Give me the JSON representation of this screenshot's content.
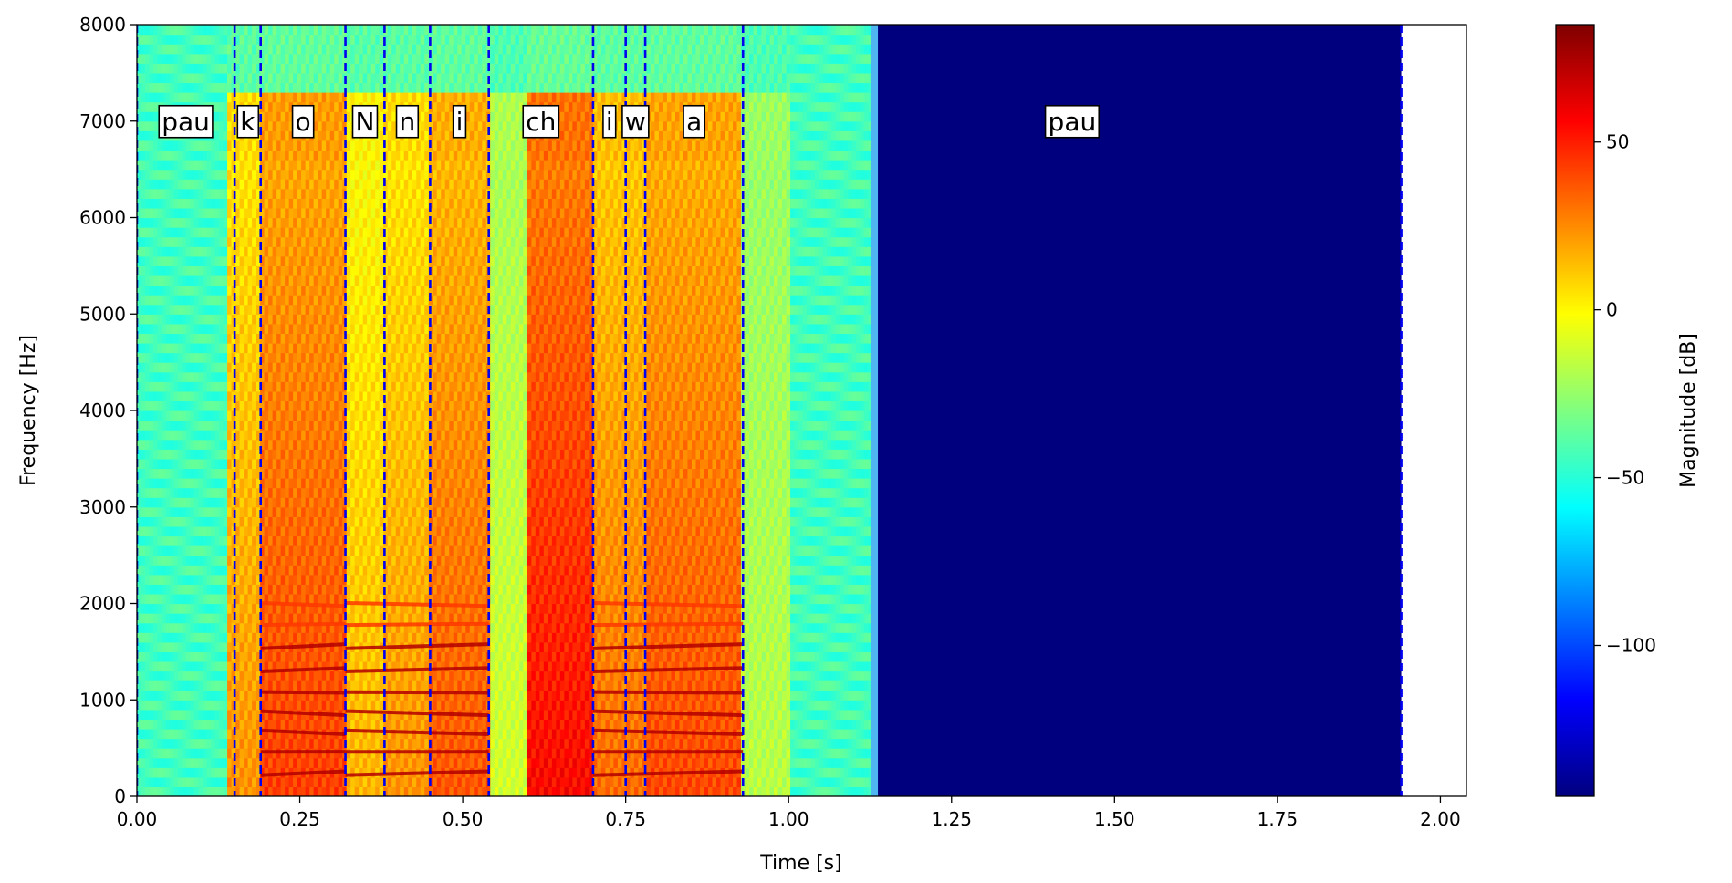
{
  "chart_data": {
    "type": "heatmap",
    "subtype": "spectrogram",
    "xlabel": "Time [s]",
    "ylabel": "Frequency [Hz]",
    "xlim": [
      0.0,
      2.04
    ],
    "ylim": [
      0,
      8000
    ],
    "xticks": [
      {
        "value": 0.0,
        "label": "0.00"
      },
      {
        "value": 0.25,
        "label": "0.25"
      },
      {
        "value": 0.5,
        "label": "0.50"
      },
      {
        "value": 0.75,
        "label": "0.75"
      },
      {
        "value": 1.0,
        "label": "1.00"
      },
      {
        "value": 1.25,
        "label": "1.25"
      },
      {
        "value": 1.5,
        "label": "1.50"
      },
      {
        "value": 1.75,
        "label": "1.75"
      },
      {
        "value": 2.0,
        "label": "2.00"
      }
    ],
    "yticks": [
      {
        "value": 0,
        "label": "0"
      },
      {
        "value": 1000,
        "label": "1000"
      },
      {
        "value": 2000,
        "label": "2000"
      },
      {
        "value": 3000,
        "label": "3000"
      },
      {
        "value": 4000,
        "label": "4000"
      },
      {
        "value": 5000,
        "label": "5000"
      },
      {
        "value": 6000,
        "label": "6000"
      },
      {
        "value": 7000,
        "label": "7000"
      },
      {
        "value": 8000,
        "label": "8000"
      }
    ],
    "spectrogram_extent_s": 1.94,
    "speech_end_s": 1.135,
    "colorbar": {
      "label": "Magnitude [dB]",
      "colormap": "jet",
      "range": [
        -145,
        85
      ],
      "ticks": [
        {
          "value": 50,
          "label": "50"
        },
        {
          "value": 0,
          "label": "0"
        },
        {
          "value": -50,
          "label": "−50"
        },
        {
          "value": -100,
          "label": "−100"
        }
      ]
    },
    "boundaries_s": [
      0.0,
      0.15,
      0.19,
      0.32,
      0.38,
      0.45,
      0.54,
      0.7,
      0.75,
      0.78,
      0.93,
      1.94
    ],
    "boundary_color": "#0000ee",
    "phonemes": [
      {
        "label": "pau",
        "start": 0.0,
        "end": 0.15,
        "label_x": 0.075
      },
      {
        "label": "k",
        "start": 0.15,
        "end": 0.19,
        "label_x": 0.17
      },
      {
        "label": "o",
        "start": 0.19,
        "end": 0.32,
        "label_x": 0.255
      },
      {
        "label": "N",
        "start": 0.32,
        "end": 0.38,
        "label_x": 0.35
      },
      {
        "label": "n",
        "start": 0.38,
        "end": 0.45,
        "label_x": 0.415
      },
      {
        "label": "i",
        "start": 0.45,
        "end": 0.54,
        "label_x": 0.495
      },
      {
        "label": "ch",
        "start": 0.54,
        "end": 0.7,
        "label_x": 0.62
      },
      {
        "label": "i",
        "start": 0.7,
        "end": 0.75,
        "label_x": 0.725
      },
      {
        "label": "w",
        "start": 0.75,
        "end": 0.78,
        "label_x": 0.765
      },
      {
        "label": "a",
        "start": 0.78,
        "end": 0.93,
        "label_x": 0.855
      },
      {
        "label": "pau",
        "start": 0.93,
        "end": 1.94,
        "label_x": 1.435
      }
    ],
    "phoneme_label_freq_hz": 7000,
    "energy_bands": [
      {
        "from": 0.0,
        "to": 0.14,
        "level": 0.0
      },
      {
        "from": 0.14,
        "to": 0.19,
        "level": 0.62
      },
      {
        "from": 0.19,
        "to": 0.32,
        "level": 0.8
      },
      {
        "from": 0.32,
        "to": 0.38,
        "level": 0.55
      },
      {
        "from": 0.38,
        "to": 0.45,
        "level": 0.62
      },
      {
        "from": 0.45,
        "to": 0.54,
        "level": 0.75
      },
      {
        "from": 0.54,
        "to": 0.6,
        "level": 0.3
      },
      {
        "from": 0.6,
        "to": 0.7,
        "level": 0.92
      },
      {
        "from": 0.7,
        "to": 0.78,
        "level": 0.7
      },
      {
        "from": 0.78,
        "to": 0.93,
        "level": 0.78
      },
      {
        "from": 0.93,
        "to": 1.0,
        "level": 0.25
      },
      {
        "from": 1.0,
        "to": 1.135,
        "level": 0.0
      }
    ],
    "harmonic_bands": [
      {
        "from": 0.19,
        "to": 0.32
      },
      {
        "from": 0.32,
        "to": 0.54
      },
      {
        "from": 0.7,
        "to": 0.93
      }
    ],
    "harmonic_spacing_hz": 220,
    "harmonic_max_hz": 2100
  }
}
